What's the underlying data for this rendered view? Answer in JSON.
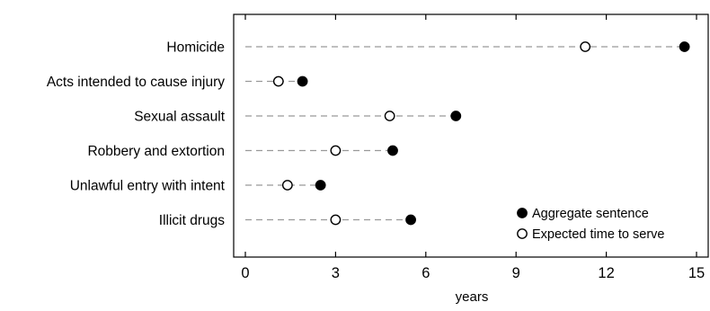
{
  "chart_data": {
    "type": "dot",
    "title": "",
    "xlabel": "years",
    "ylabel": "",
    "xlim": [
      0,
      15
    ],
    "xticks": [
      "0",
      "3",
      "6",
      "9",
      "12",
      "15"
    ],
    "categories": [
      "Homicide",
      "Acts intended to cause injury",
      "Sexual assault",
      "Robbery and extortion",
      "Unlawful entry with intent",
      "Illicit drugs"
    ],
    "series": [
      {
        "name": "Aggregate sentence",
        "marker": "filled-circle",
        "values": [
          14.6,
          1.9,
          7.0,
          4.9,
          2.5,
          5.5
        ]
      },
      {
        "name": "Expected time to serve",
        "marker": "open-circle",
        "values": [
          11.3,
          1.1,
          4.8,
          3.0,
          1.4,
          3.0
        ]
      }
    ],
    "legend_position": "bottom-right",
    "connector": "dashed"
  },
  "colors": {
    "marker": "#000000",
    "connector": "#999999",
    "frame": "#000000"
  }
}
